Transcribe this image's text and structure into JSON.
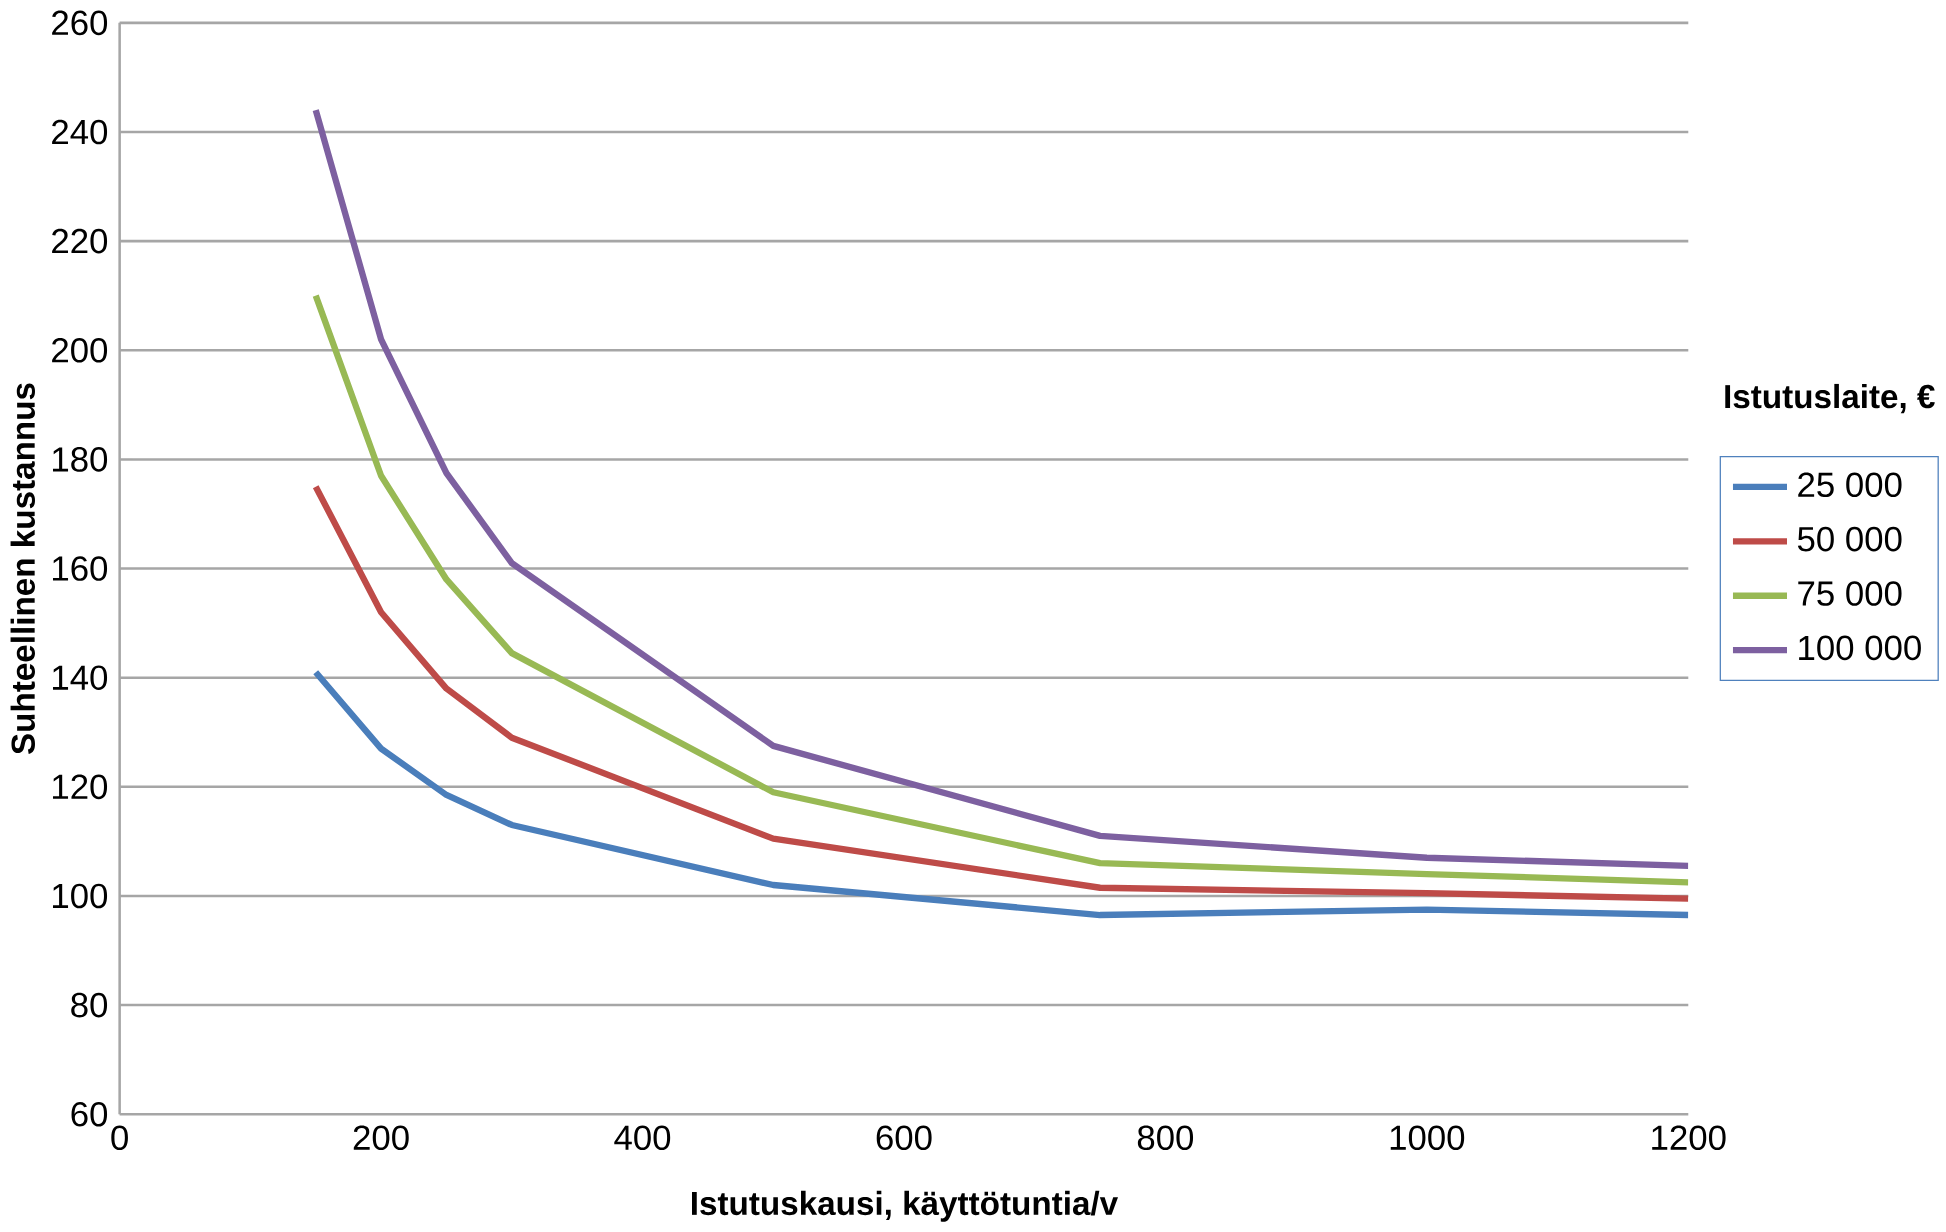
{
  "chart_data": {
    "type": "line",
    "xlabel": "Istutuskausi,  käyttötuntia/v",
    "ylabel": "Suhteellinen kustannus",
    "legend_title": "Istutuslaite, €",
    "x": [
      150,
      200,
      250,
      300,
      500,
      750,
      1000,
      1200
    ],
    "series": [
      {
        "name": "25 000",
        "color": "#4a7ebb",
        "values": [
          141,
          127,
          118.5,
          113,
          102,
          96.5,
          97.5,
          96.5
        ]
      },
      {
        "name": "50 000",
        "color": "#be4b48",
        "values": [
          175,
          152,
          138,
          129,
          110.5,
          101.5,
          100.5,
          99.5
        ]
      },
      {
        "name": "75 000",
        "color": "#98b954",
        "values": [
          210,
          177,
          158,
          144.5,
          119,
          106,
          104,
          102.5
        ]
      },
      {
        "name": "100 000",
        "color": "#7d60a0",
        "values": [
          244,
          202,
          177.5,
          161,
          127.5,
          111,
          107,
          105.5
        ]
      }
    ],
    "xlim": [
      0,
      1200
    ],
    "ylim": [
      60,
      260
    ],
    "xticks": [
      0,
      200,
      400,
      600,
      800,
      1000,
      1200
    ],
    "yticks": [
      60,
      80,
      100,
      120,
      140,
      160,
      180,
      200,
      220,
      240,
      260
    ],
    "grid": "y",
    "legend": "right",
    "marker": "none",
    "line_style": "solid"
  }
}
